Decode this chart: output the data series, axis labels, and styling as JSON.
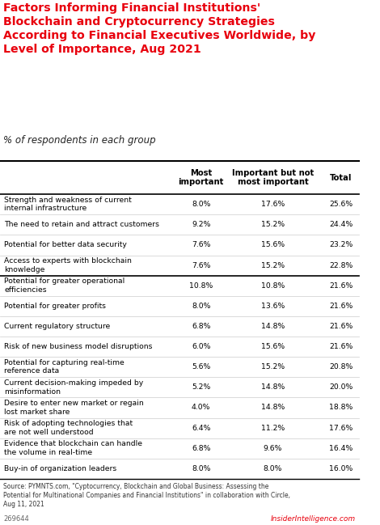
{
  "title": "Factors Informing Financial Institutions'\nBlockchain and Cryptocurrency Strategies\nAccording to Financial Executives Worldwide, by\nLevel of Importance, Aug 2021",
  "subtitle": "% of respondents in each group",
  "col_headers": [
    "Most\nimportant",
    "Important but not\nmost important",
    "Total"
  ],
  "rows": [
    {
      "label": "Strength and weakness of current\ninternal infrastructure",
      "most": "8.0%",
      "important": "17.6%",
      "total": "25.6%"
    },
    {
      "label": "The need to retain and attract customers",
      "most": "9.2%",
      "important": "15.2%",
      "total": "24.4%"
    },
    {
      "label": "Potential for better data security",
      "most": "7.6%",
      "important": "15.6%",
      "total": "23.2%"
    },
    {
      "label": "Access to experts with blockchain\nknowledge",
      "most": "7.6%",
      "important": "15.2%",
      "total": "22.8%"
    },
    {
      "label": "Potential for greater operational\nefficiencies",
      "most": "10.8%",
      "important": "10.8%",
      "total": "21.6%"
    },
    {
      "label": "Potential for greater profits",
      "most": "8.0%",
      "important": "13.6%",
      "total": "21.6%"
    },
    {
      "label": "Current regulatory structure",
      "most": "6.8%",
      "important": "14.8%",
      "total": "21.6%"
    },
    {
      "label": "Risk of new business model disruptions",
      "most": "6.0%",
      "important": "15.6%",
      "total": "21.6%"
    },
    {
      "label": "Potential for capturing real-time\nreference data",
      "most": "5.6%",
      "important": "15.2%",
      "total": "20.8%"
    },
    {
      "label": "Current decision-making impeded by\nmisinformation",
      "most": "5.2%",
      "important": "14.8%",
      "total": "20.0%"
    },
    {
      "label": "Desire to enter new market or regain\nlost market share",
      "most": "4.0%",
      "important": "14.8%",
      "total": "18.8%"
    },
    {
      "label": "Risk of adopting technologies that\nare not well understood",
      "most": "6.4%",
      "important": "11.2%",
      "total": "17.6%"
    },
    {
      "label": "Evidence that blockchain can handle\nthe volume in real-time",
      "most": "6.8%",
      "important": "9.6%",
      "total": "16.4%"
    },
    {
      "label": "Buy-in of organization leaders",
      "most": "8.0%",
      "important": "8.0%",
      "total": "16.0%"
    }
  ],
  "source": "Source: PYMNTS.com, \"Cyptocurrency, Blockchain and Global Business: Assessing the\nPotential for Multinational Companies and Financial Institutions\" in collaboration with Circle,\nAug 11, 2021",
  "watermark": "269644",
  "brand": "InsiderIntelligence.com",
  "title_color": "#e8000d",
  "bg_color": "#ffffff",
  "divider_color": "#cccccc",
  "thick_divider_color": "#000000"
}
